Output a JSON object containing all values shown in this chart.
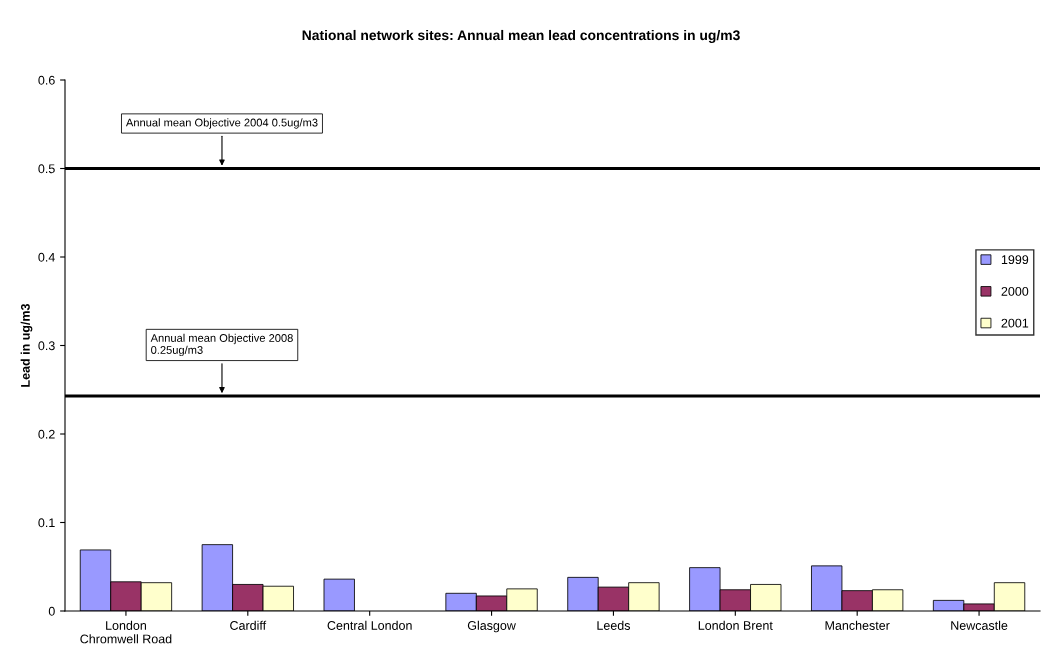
{
  "chart_data": {
    "type": "bar",
    "title": "National network sites: Annual mean lead concentrations in ug/m3",
    "ylabel": "Lead in ug/m3",
    "categories": [
      "London\nChromwell Road",
      "Cardiff",
      "Central London",
      "Glasgow",
      "Leeds",
      "London Brent",
      "Manchester",
      "Newcastle"
    ],
    "series": [
      {
        "name": "1999",
        "color": "#9999ff",
        "values": [
          0.069,
          0.075,
          0.036,
          0.02,
          0.038,
          0.049,
          0.051,
          0.012
        ]
      },
      {
        "name": "2000",
        "color": "#993366",
        "values": [
          0.033,
          0.03,
          null,
          0.017,
          0.027,
          0.024,
          0.023,
          0.008
        ]
      },
      {
        "name": "2001",
        "color": "#ffffcc",
        "values": [
          0.032,
          0.028,
          null,
          0.025,
          0.032,
          0.03,
          0.024,
          0.032
        ]
      }
    ],
    "ylim": [
      0,
      0.6
    ],
    "yticks": [
      0,
      0.1,
      0.2,
      0.3,
      0.4,
      0.5,
      0.6
    ],
    "ref_lines": [
      {
        "axis": "y",
        "value": 0.5,
        "label": "Annual mean Objective 2004 0.5ug/m3",
        "color": "#000000"
      },
      {
        "axis": "y",
        "value": 0.243,
        "label": "Annual mean Objective 2008\n0.25ug/m3",
        "color": "#000000"
      }
    ],
    "grid": false,
    "legend": "right"
  }
}
